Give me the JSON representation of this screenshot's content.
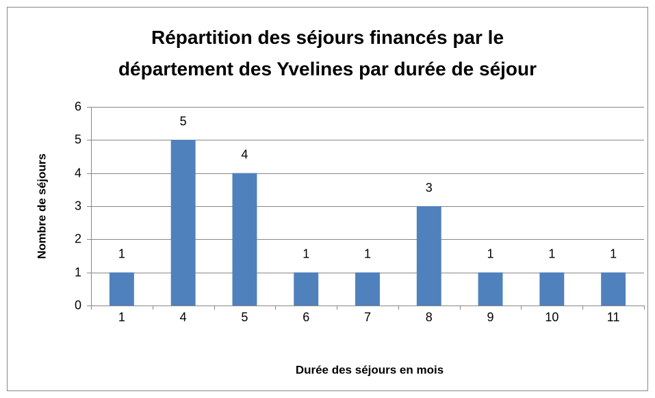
{
  "chart_data": {
    "type": "bar",
    "title": "Répartition des séjours financés par le département des Yvelines par durée de séjour",
    "x_label": "Durée des séjours en mois",
    "y_label": "Nombre de séjours",
    "categories": [
      "1",
      "4",
      "5",
      "6",
      "7",
      "8",
      "9",
      "10",
      "11"
    ],
    "values": [
      1,
      5,
      4,
      1,
      1,
      3,
      1,
      1,
      1
    ],
    "color": "#4f81bd",
    "ylim": [
      0,
      6
    ],
    "yticks": [
      0,
      1,
      2,
      3,
      4,
      5,
      6
    ],
    "grid": true
  }
}
